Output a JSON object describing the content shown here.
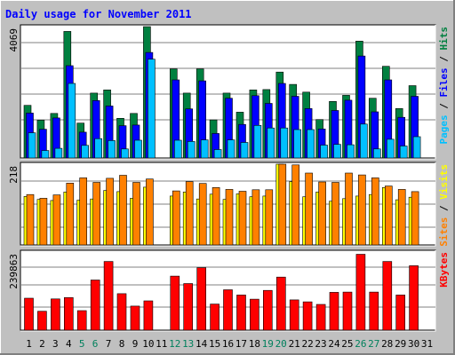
{
  "title": "Daily usage for November 2011",
  "colors": {
    "background": "#c0c0c0",
    "panel": "#ffffff",
    "title": "#0000ff",
    "hits": "#008040",
    "files": "#0000ff",
    "pages": "#00c0ff",
    "visits": "#ffff00",
    "sites": "#ff8000",
    "kbytes": "#ff0000",
    "weekend_label": "#00805c",
    "weekday_label": "#000000"
  },
  "chart_data": [
    {
      "type": "bar",
      "panel": "hits-files-pages",
      "ymax_label": "4069",
      "ylim": [
        0,
        4069
      ],
      "legend": [
        "Pages",
        "Files",
        "Hits"
      ],
      "categories": [
        "1",
        "2",
        "3",
        "4",
        "5",
        "6",
        "7",
        "8",
        "9",
        "10",
        "11",
        "12",
        "13",
        "14",
        "15",
        "16",
        "17",
        "18",
        "19",
        "20",
        "21",
        "22",
        "23",
        "24",
        "25",
        "26",
        "27",
        "28",
        "29",
        "30",
        "31"
      ],
      "series": [
        {
          "name": "Hits",
          "values": [
            1630,
            1170,
            1380,
            3920,
            1080,
            2010,
            2110,
            1230,
            1380,
            4069,
            0,
            2760,
            2010,
            2760,
            1180,
            2010,
            1420,
            2110,
            2120,
            2660,
            2280,
            2040,
            1190,
            1750,
            1940,
            3620,
            1850,
            2840,
            1530,
            2240,
            0
          ]
        },
        {
          "name": "Files",
          "values": [
            1390,
            890,
            1240,
            2860,
            800,
            1780,
            1610,
            1000,
            1020,
            3270,
            0,
            2420,
            1520,
            2390,
            760,
            1850,
            1040,
            1930,
            1690,
            2310,
            1910,
            1530,
            900,
            1470,
            1790,
            3160,
            1430,
            2420,
            1260,
            1910,
            0
          ]
        },
        {
          "name": "Pages",
          "values": [
            780,
            230,
            300,
            2310,
            390,
            600,
            540,
            280,
            550,
            3060,
            0,
            550,
            510,
            560,
            260,
            560,
            480,
            1010,
            930,
            930,
            880,
            880,
            400,
            420,
            410,
            1050,
            280,
            580,
            370,
            660,
            0
          ]
        }
      ]
    },
    {
      "type": "bar",
      "panel": "visits-sites",
      "ymax_label": "218",
      "ylim": [
        0,
        218
      ],
      "legend": [
        "Sites",
        "Visits"
      ],
      "categories": [
        "1",
        "2",
        "3",
        "4",
        "5",
        "6",
        "7",
        "8",
        "9",
        "10",
        "11",
        "12",
        "13",
        "14",
        "15",
        "16",
        "17",
        "18",
        "19",
        "20",
        "21",
        "22",
        "23",
        "24",
        "25",
        "26",
        "27",
        "28",
        "29",
        "30",
        "31"
      ],
      "series": [
        {
          "name": "Visits",
          "values": [
            131,
            123,
            120,
            143,
            121,
            124,
            147,
            144,
            126,
            156,
            0,
            132,
            143,
            124,
            137,
            123,
            138,
            130,
            132,
            218,
            171,
            130,
            143,
            118,
            125,
            132,
            136,
            155,
            122,
            129,
            0
          ]
        },
        {
          "name": "Sites",
          "values": [
            136,
            126,
            135,
            167,
            181,
            169,
            180,
            188,
            169,
            178,
            0,
            146,
            171,
            166,
            155,
            150,
            145,
            149,
            149,
            218,
            216,
            194,
            170,
            169,
            194,
            189,
            181,
            159,
            150,
            144,
            0
          ]
        }
      ]
    },
    {
      "type": "bar",
      "panel": "kbytes",
      "ymax_label": "239863",
      "ylim": [
        0,
        239863
      ],
      "legend": [
        "KBytes"
      ],
      "categories": [
        "1",
        "2",
        "3",
        "4",
        "5",
        "6",
        "7",
        "8",
        "9",
        "10",
        "11",
        "12",
        "13",
        "14",
        "15",
        "16",
        "17",
        "18",
        "19",
        "20",
        "21",
        "22",
        "23",
        "24",
        "25",
        "26",
        "27",
        "28",
        "29",
        "30",
        "31"
      ],
      "series": [
        {
          "name": "KBytes",
          "values": [
            98000,
            58000,
            96000,
            100000,
            60000,
            154000,
            211000,
            112000,
            74000,
            90000,
            0,
            166000,
            143000,
            192000,
            80000,
            124000,
            108000,
            95000,
            122000,
            163000,
            93000,
            87000,
            79000,
            116000,
            117000,
            233000,
            117000,
            211000,
            108000,
            198000,
            0
          ]
        }
      ]
    }
  ]
}
